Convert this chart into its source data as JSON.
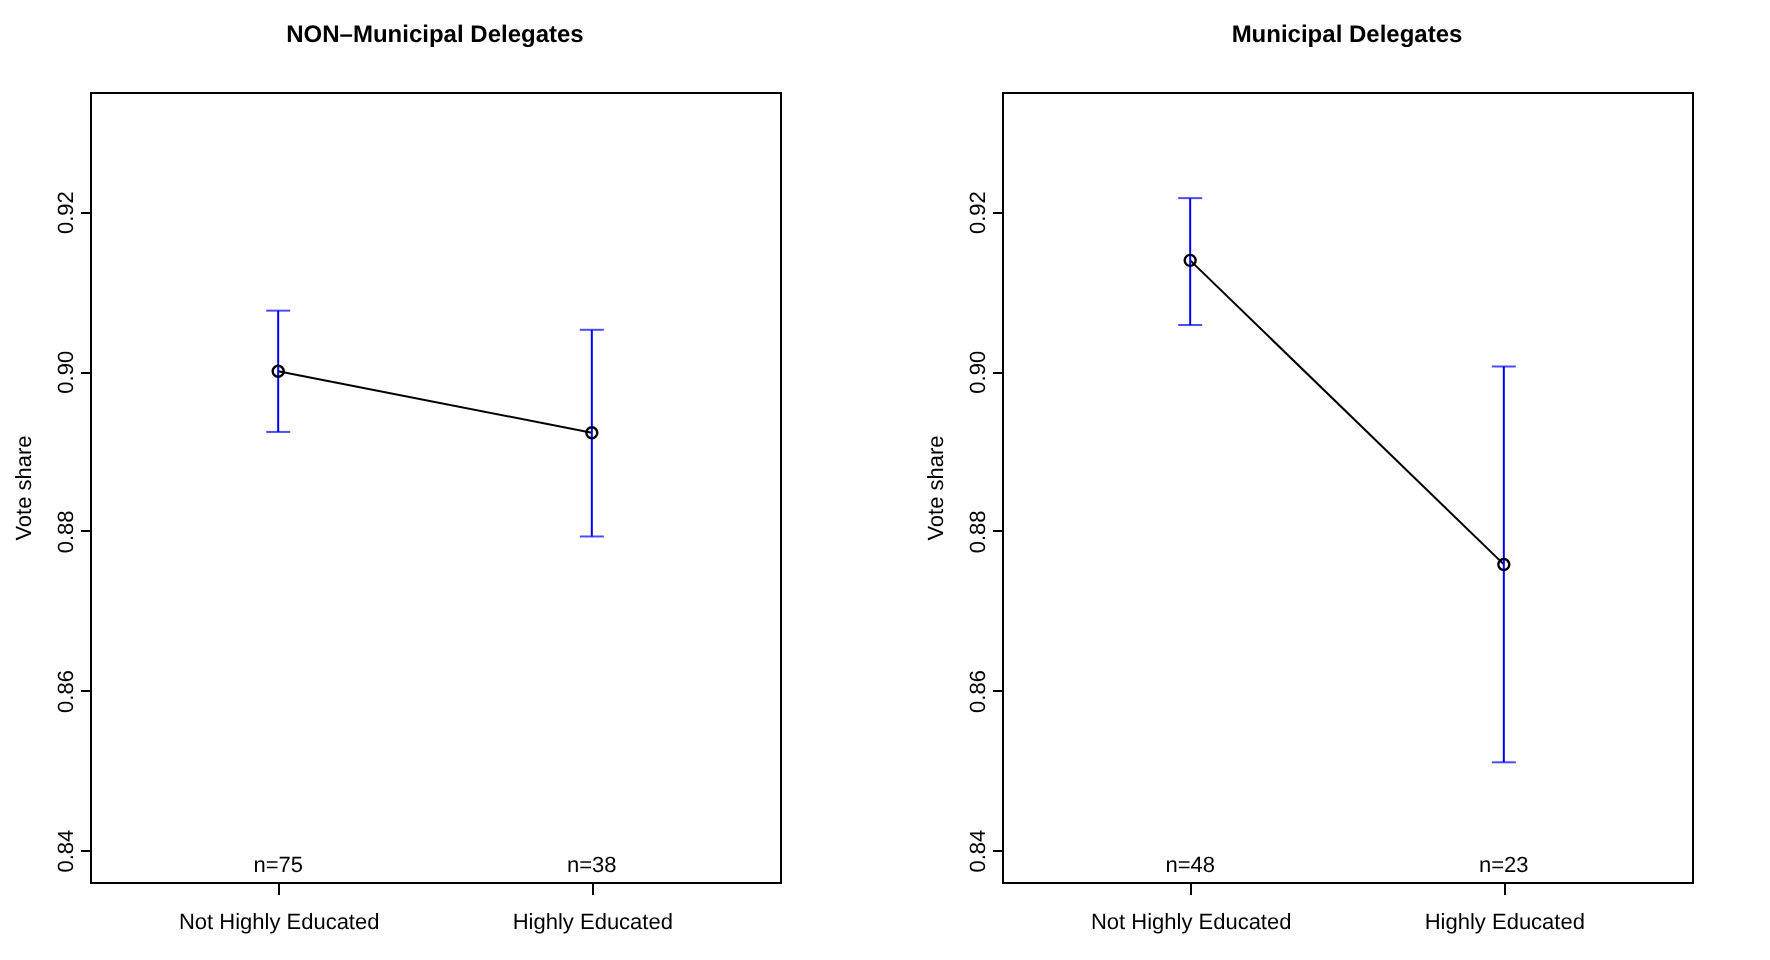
{
  "chart_data": [
    {
      "type": "line",
      "title": "NON–Municipal Delegates",
      "ylabel": "Vote share",
      "categories": [
        "Not Highly Educated",
        "Highly Educated"
      ],
      "series": [
        {
          "color": "#000000",
          "values": [
            0.9,
            0.8923
          ],
          "errors": [
            [
              0.8924,
              0.9076
            ],
            [
              0.8793,
              0.9052
            ]
          ]
        }
      ],
      "ylim": [
        0.836,
        0.935
      ],
      "yticks": [
        0.84,
        0.86,
        0.88,
        {
          "value": 0.9,
          "label": "0.90"
        },
        0.92
      ],
      "grid": false,
      "marker": "circle",
      "line_style": "solid",
      "annotations": [
        "n=75",
        "n=38"
      ]
    },
    {
      "type": "line",
      "title": "Municipal Delegates",
      "ylabel": "Vote share",
      "categories": [
        "Not Highly Educated",
        "Highly Educated"
      ],
      "series": [
        {
          "color": "#000000",
          "values": [
            0.9139,
            0.8758
          ],
          "errors": [
            [
              0.9058,
              0.9217
            ],
            [
              0.851,
              0.9006
            ]
          ]
        }
      ],
      "ylim": [
        0.836,
        0.935
      ],
      "yticks": [
        0.84,
        0.86,
        0.88,
        {
          "value": 0.9,
          "label": "0.90"
        },
        0.92
      ],
      "grid": false,
      "marker": "circle",
      "line_style": "solid",
      "annotations": [
        "n=48",
        "n=23"
      ]
    }
  ]
}
